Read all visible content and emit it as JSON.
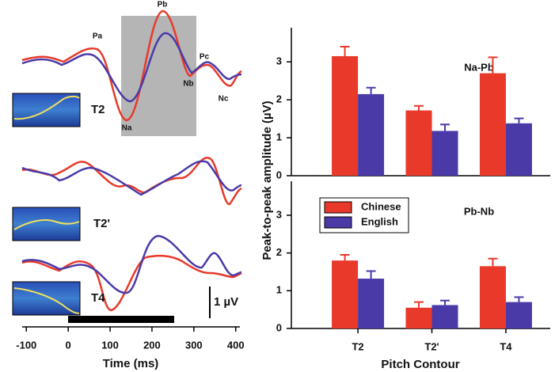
{
  "chart_data": [
    {
      "type": "waveform",
      "xlabel": "Time (ms)",
      "xlim": [
        -110,
        410
      ],
      "xticks": [
        -100,
        0,
        100,
        200,
        300,
        400
      ],
      "annotations": [
        "Pa",
        "Pb",
        "Na",
        "Nb",
        "Pc",
        "Nc",
        "T2",
        "T2'",
        "T4",
        "1 µV"
      ]
    },
    {
      "type": "bar",
      "title": "Na-Pb",
      "ylabel": "Peak-to-peak amplitude  (µV)",
      "categories": [
        "T2",
        "T2'",
        "T4"
      ],
      "series": [
        {
          "name": "Chinese",
          "color": "#e8392a",
          "values": [
            3.15,
            1.72,
            2.7
          ],
          "errors": [
            0.25,
            0.12,
            0.42
          ]
        },
        {
          "name": "English",
          "color": "#4a3aa8",
          "values": [
            2.15,
            1.18,
            1.38
          ],
          "errors": [
            0.17,
            0.17,
            0.13
          ]
        }
      ],
      "ylim": [
        0,
        3.9
      ],
      "yticks": [
        0,
        1,
        2,
        3
      ]
    },
    {
      "type": "bar",
      "title": "Pb-Nb",
      "xlabel": "Pitch Contour",
      "categories": [
        "T2",
        "T2'",
        "T4"
      ],
      "series": [
        {
          "name": "Chinese",
          "color": "#e8392a",
          "values": [
            1.8,
            0.55,
            1.65
          ],
          "errors": [
            0.15,
            0.15,
            0.2
          ]
        },
        {
          "name": "English",
          "color": "#4a3aa8",
          "values": [
            1.32,
            0.62,
            0.7
          ],
          "errors": [
            0.2,
            0.12,
            0.13
          ]
        }
      ],
      "ylim": [
        0,
        3.9
      ],
      "yticks": [
        0,
        1,
        2,
        3
      ],
      "legend": "upper-left"
    }
  ]
}
